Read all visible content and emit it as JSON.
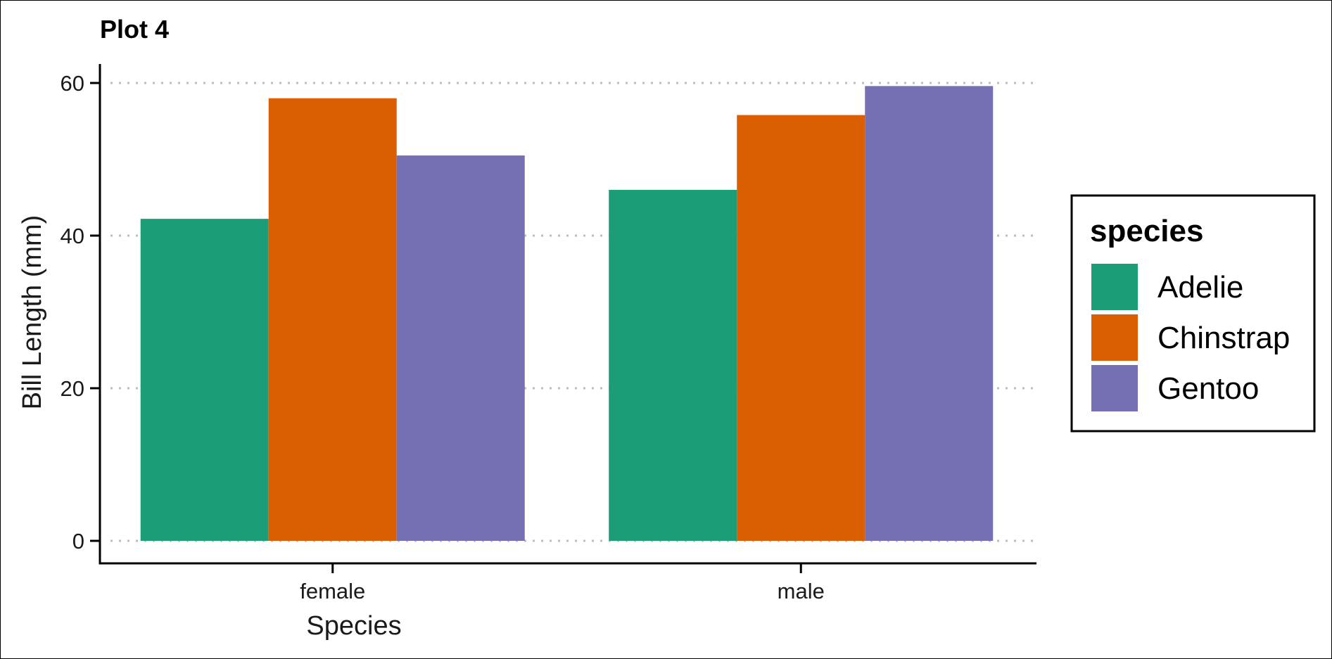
{
  "chart_data": {
    "type": "bar",
    "title": "Plot 4",
    "xlabel": "Species",
    "ylabel": "Bill Length (mm)",
    "categories": [
      "female",
      "male"
    ],
    "series": [
      {
        "name": "Adelie",
        "color": "#1B9E77",
        "values": [
          42.2,
          46.0
        ]
      },
      {
        "name": "Chinstrap",
        "color": "#D95F02",
        "values": [
          58.0,
          55.8
        ]
      },
      {
        "name": "Gentoo",
        "color": "#7570B3",
        "values": [
          50.5,
          59.6
        ]
      }
    ],
    "ylim": [
      0,
      60
    ],
    "yticks": [
      0,
      20,
      40,
      60
    ],
    "grid": "horizontal-dotted",
    "legend": {
      "title": "species",
      "placement": "right"
    }
  }
}
